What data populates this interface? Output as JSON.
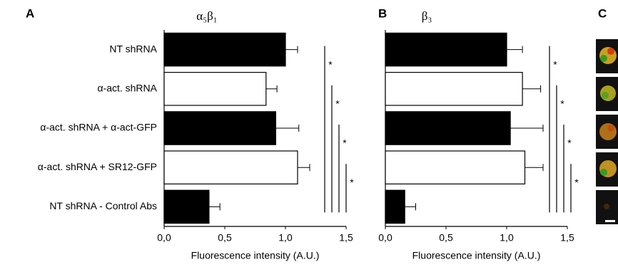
{
  "chart_data": [
    {
      "type": "bar",
      "orientation": "horizontal",
      "panel_label": "A",
      "title": "α₅β₁",
      "xlabel": "Fluorescence intensity (A.U.)",
      "categories": [
        "NT shRNA",
        "α-act. shRNA",
        "α-act. shRNA + α-act-GFP",
        "α-act. shRNA + SR12-GFP",
        "NT shRNA - Control Abs"
      ],
      "values": [
        1.0,
        0.84,
        0.92,
        1.1,
        0.37
      ],
      "errors": [
        0.1,
        0.09,
        0.19,
        0.1,
        0.09
      ],
      "colors": [
        "#000000",
        "#ffffff",
        "#000000",
        "#ffffff",
        "#000000"
      ],
      "xlim": [
        0,
        1.5
      ],
      "xticks": [
        {
          "value": 0,
          "label": "0,0"
        },
        {
          "value": 0.5,
          "label": "0,5"
        },
        {
          "value": 1,
          "label": "1,0"
        },
        {
          "value": 1.5,
          "label": "1,5"
        }
      ],
      "significance_labels": [
        "*",
        "*",
        "*",
        "*"
      ]
    },
    {
      "type": "bar",
      "orientation": "horizontal",
      "panel_label": "B",
      "title": "β₃",
      "xlabel": "Fluorescence intensity (A.U.)",
      "categories": [
        null,
        null,
        null,
        null,
        null
      ],
      "values": [
        1.0,
        1.13,
        1.03,
        1.15,
        0.16
      ],
      "errors": [
        0.13,
        0.15,
        0.27,
        0.15,
        0.09
      ],
      "colors": [
        "#000000",
        "#ffffff",
        "#000000",
        "#ffffff",
        "#000000"
      ],
      "xlim": [
        0,
        1.5
      ],
      "xticks": [
        {
          "value": 0,
          "label": "0,0"
        },
        {
          "value": 0.5,
          "label": "0,5"
        },
        {
          "value": 1,
          "label": "1,0"
        },
        {
          "value": 1.5,
          "label": "1,5"
        }
      ],
      "significance_labels": [
        "*",
        "*",
        "*",
        "*"
      ]
    }
  ],
  "panel_c": {
    "label": "C"
  }
}
